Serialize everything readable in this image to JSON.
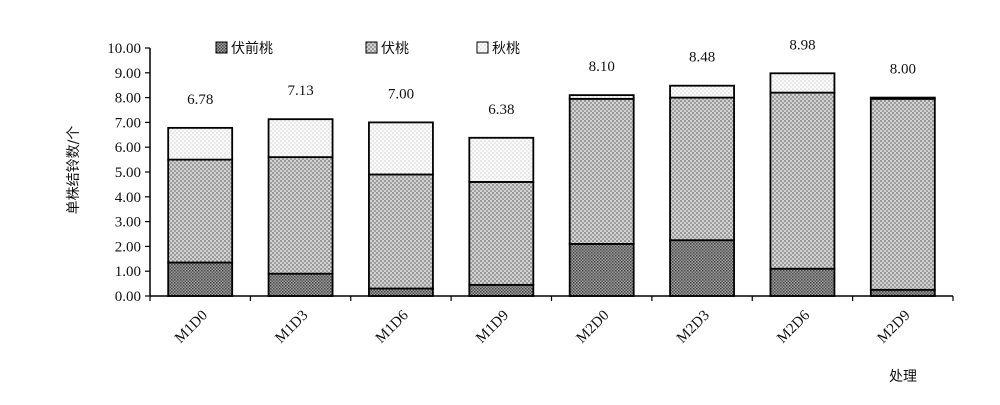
{
  "chart_data": {
    "type": "bar",
    "stacked": true,
    "categories": [
      "M1D0",
      "M1D3",
      "M1D6",
      "M1D9",
      "M2D0",
      "M2D3",
      "M2D6",
      "M2D9"
    ],
    "series": [
      {
        "name": "伏前桃",
        "values": [
          1.35,
          0.9,
          0.3,
          0.45,
          2.1,
          2.25,
          1.1,
          0.25
        ],
        "color": "#8a8a8a"
      },
      {
        "name": "伏桃",
        "values": [
          4.15,
          4.7,
          4.6,
          4.15,
          5.85,
          5.75,
          7.1,
          7.7
        ],
        "color": "#bdbdbd"
      },
      {
        "name": "秋桃",
        "values": [
          1.28,
          1.53,
          2.1,
          1.78,
          0.15,
          0.48,
          0.78,
          0.05
        ],
        "color": "#f0f0f0"
      }
    ],
    "totals": [
      "6.78",
      "7.13",
      "7.00",
      "6.38",
      "8.10",
      "8.48",
      "8.98",
      "8.00"
    ],
    "yticks": [
      "0.00",
      "1.00",
      "2.00",
      "3.00",
      "4.00",
      "5.00",
      "6.00",
      "7.00",
      "8.00",
      "9.00",
      "10.00"
    ],
    "ylim": [
      0,
      10
    ],
    "ylabel": "单株结铃数/个",
    "xlabel": "处理",
    "legend_position": "top",
    "grid": false
  }
}
